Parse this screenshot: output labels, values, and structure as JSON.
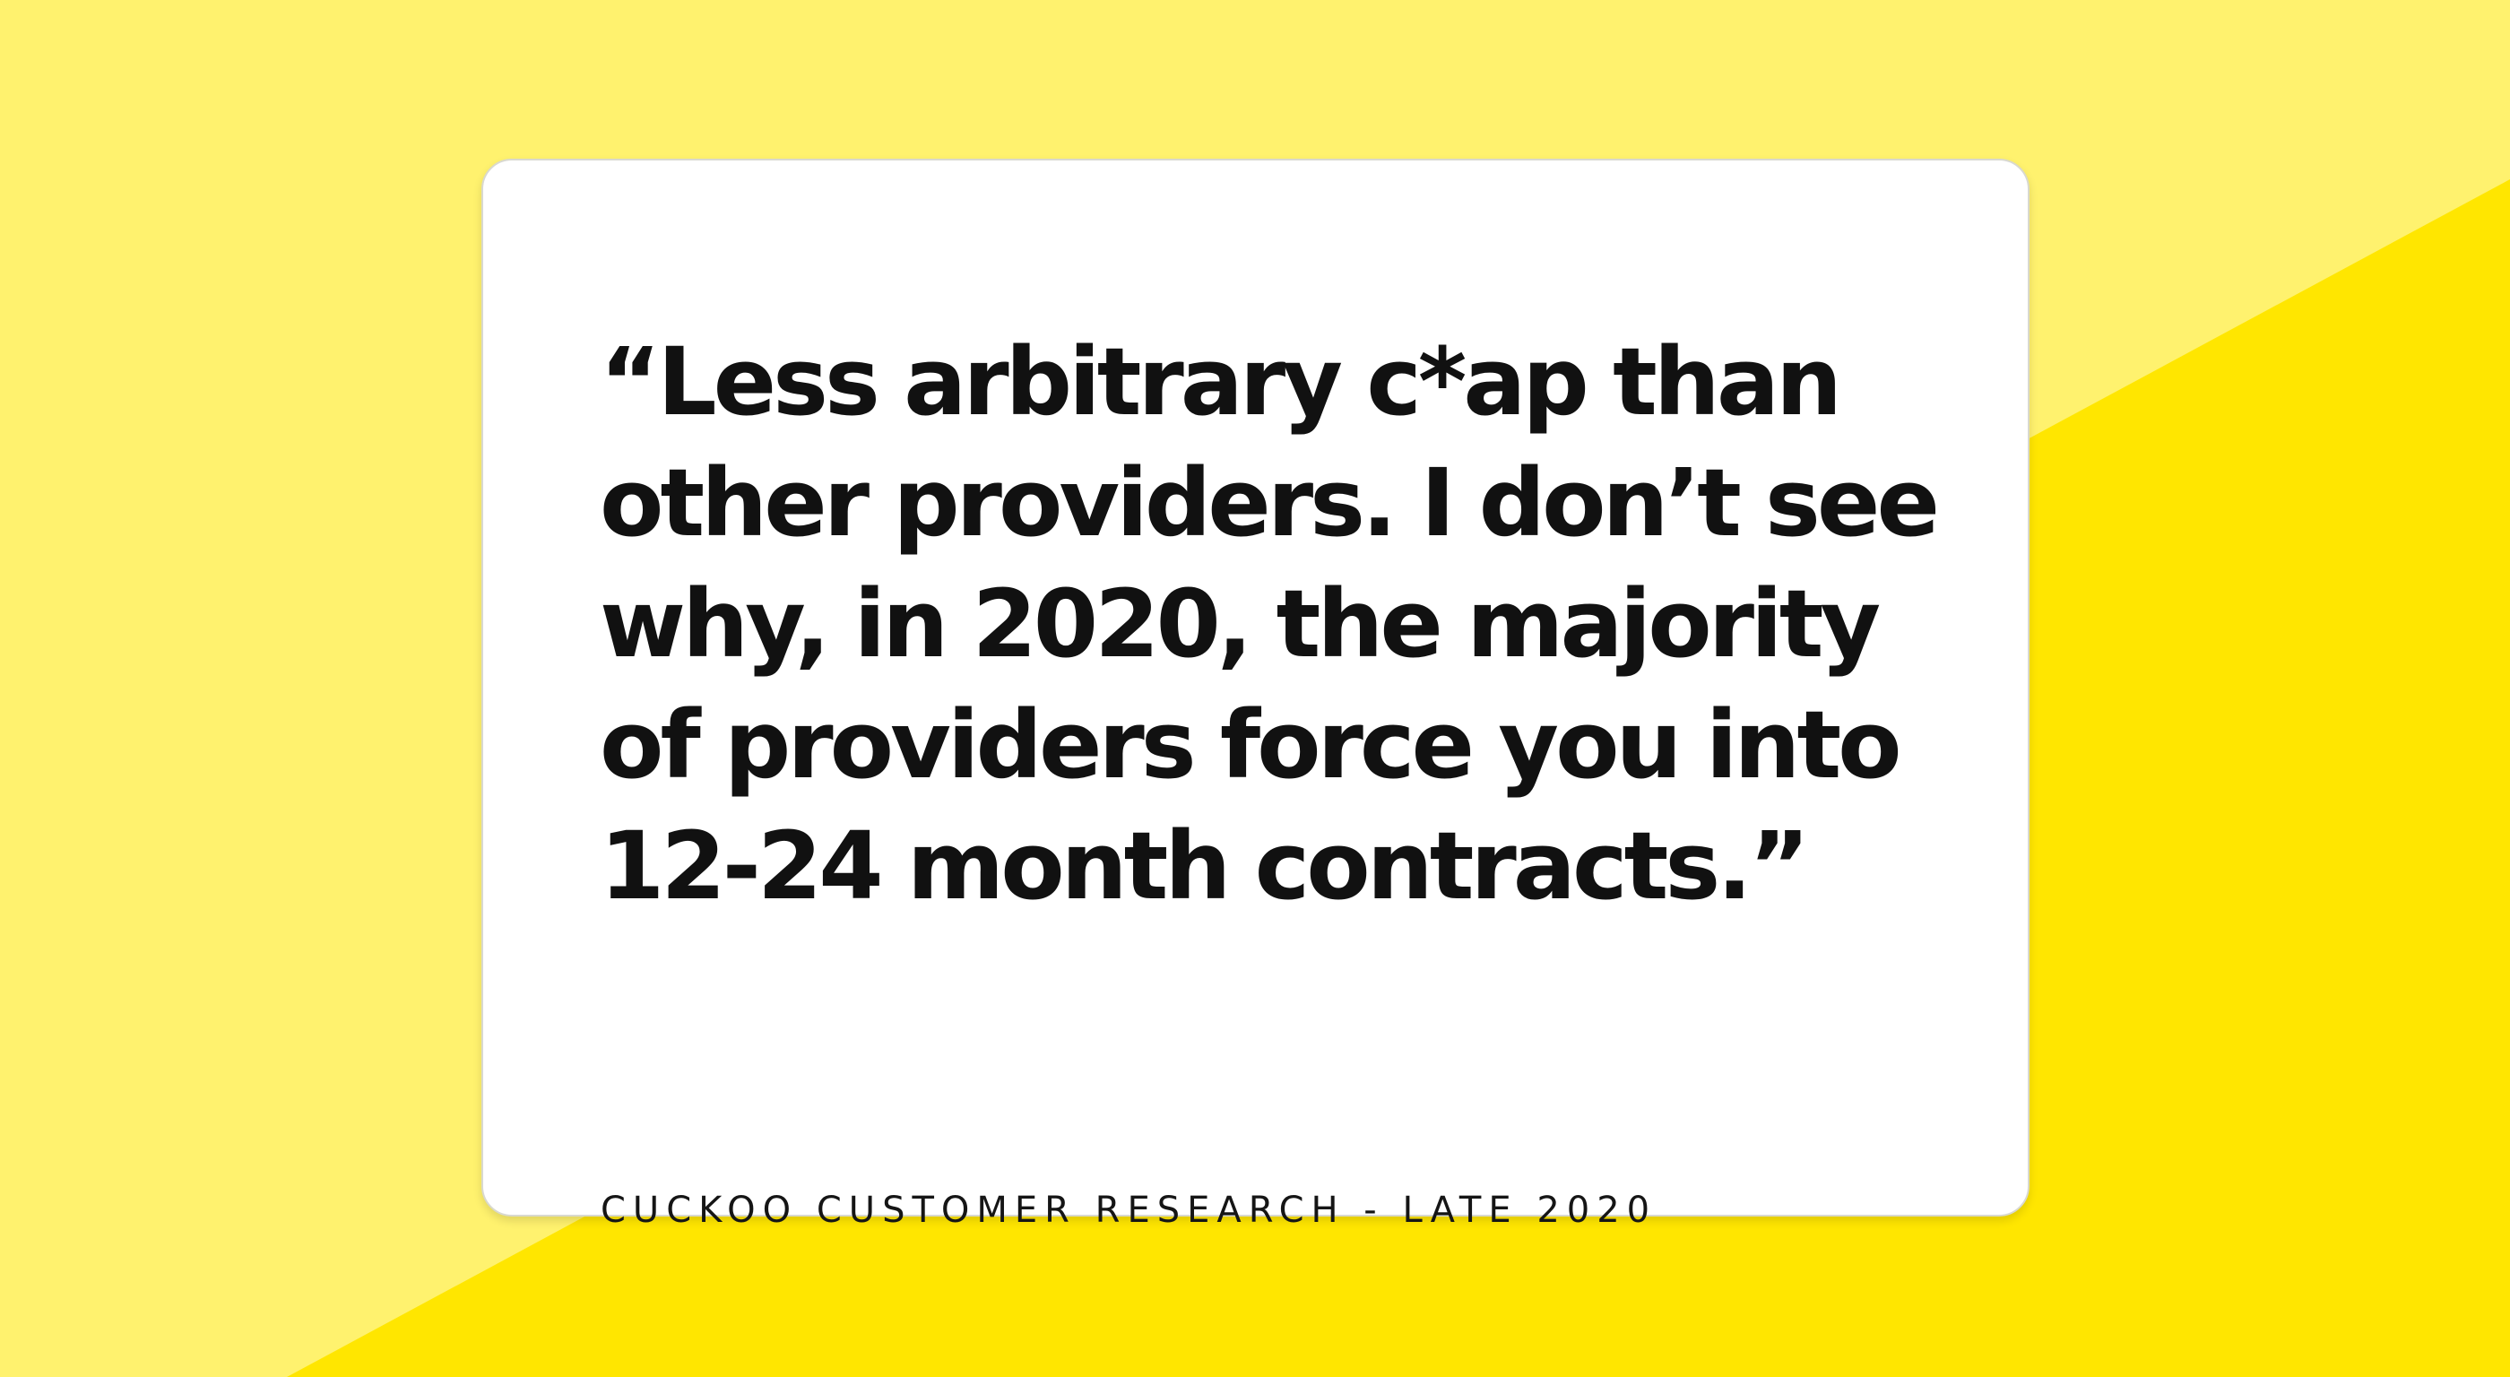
{
  "quote": {
    "lines": [
      "“Less arbitrary c*ap than",
      "other providers. I don’t see",
      "why, in 2020, the majority",
      "of providers force you into",
      "12-24 month contracts.”"
    ],
    "attribution": "CUCKOO CUSTOMER RESEARCH - LATE 2020"
  },
  "colors": {
    "background_light": "#FFF26E",
    "background_bright": "#FFE600",
    "card": "#FFFFFF",
    "text": "#111111"
  }
}
